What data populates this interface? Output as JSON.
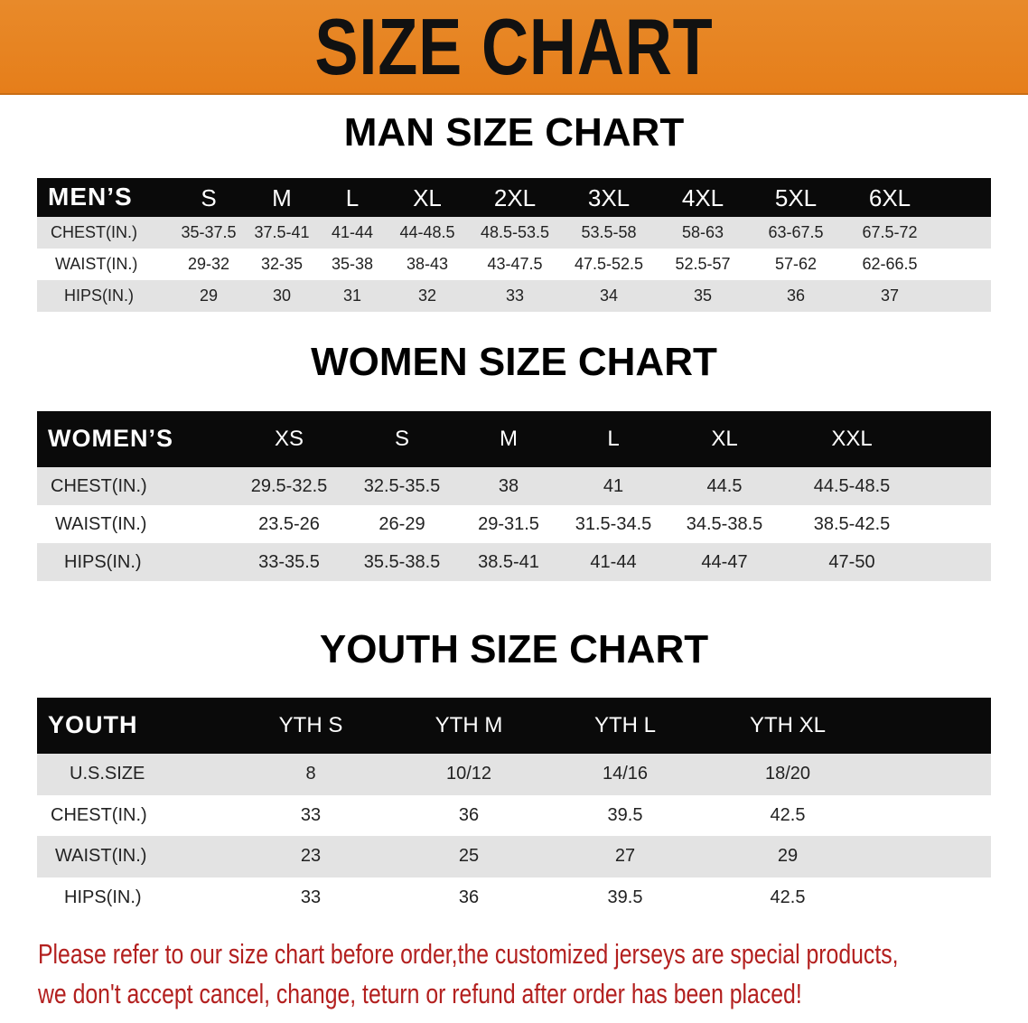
{
  "banner": {
    "title": "SIZE CHART",
    "color": "#e8821e"
  },
  "men": {
    "title": "MAN SIZE CHART",
    "header_label": "MEN’S",
    "sizes": [
      "S",
      "M",
      "L",
      "XL",
      "2XL",
      "3XL",
      "4XL",
      "5XL",
      "6XL"
    ],
    "rows": [
      {
        "label": "CHEST(IN.)",
        "values": [
          "35-37.5",
          "37.5-41",
          "41-44",
          "44-48.5",
          "48.5-53.5",
          "53.5-58",
          "58-63",
          "63-67.5",
          "67.5-72"
        ]
      },
      {
        "label": "WAIST(IN.)",
        "values": [
          "29-32",
          "32-35",
          "35-38",
          "38-43",
          "43-47.5",
          "47.5-52.5",
          "52.5-57",
          "57-62",
          "62-66.5"
        ]
      },
      {
        "label": "HIPS(IN.)",
        "values": [
          "29",
          "30",
          "31",
          "32",
          "33",
          "34",
          "35",
          "36",
          "37"
        ]
      }
    ]
  },
  "women": {
    "title": "WOMEN SIZE CHART",
    "header_label": "WOMEN’S",
    "sizes": [
      "XS",
      "S",
      "M",
      "L",
      "XL",
      "XXL"
    ],
    "rows": [
      {
        "label": "CHEST(IN.)",
        "values": [
          "29.5-32.5",
          "32.5-35.5",
          "38",
          "41",
          "44.5",
          "44.5-48.5"
        ]
      },
      {
        "label": "WAIST(IN.)",
        "values": [
          "23.5-26",
          "26-29",
          "29-31.5",
          "31.5-34.5",
          "34.5-38.5",
          "38.5-42.5"
        ]
      },
      {
        "label": "HIPS(IN.)",
        "values": [
          "33-35.5",
          "35.5-38.5",
          "38.5-41",
          "41-44",
          "44-47",
          "47-50"
        ]
      }
    ]
  },
  "youth": {
    "title": "YOUTH SIZE CHART",
    "header_label": "YOUTH",
    "sizes": [
      "YTH S",
      "YTH M",
      "YTH L",
      "YTH XL"
    ],
    "rows": [
      {
        "label": "U.S.SIZE",
        "values": [
          "8",
          "10/12",
          "14/16",
          "18/20"
        ]
      },
      {
        "label": "CHEST(IN.)",
        "values": [
          "33",
          "36",
          "39.5",
          "42.5"
        ]
      },
      {
        "label": "WAIST(IN.)",
        "values": [
          "23",
          "25",
          "27",
          "29"
        ]
      },
      {
        "label": "HIPS(IN.)",
        "values": [
          "33",
          "36",
          "39.5",
          "42.5"
        ]
      }
    ]
  },
  "notice": {
    "line1": "Please refer to our size chart before order,the customized jerseys are special products,",
    "line2": "we don't accept cancel, change, teturn or refund after order has been placed!",
    "color": "#b3201f"
  }
}
